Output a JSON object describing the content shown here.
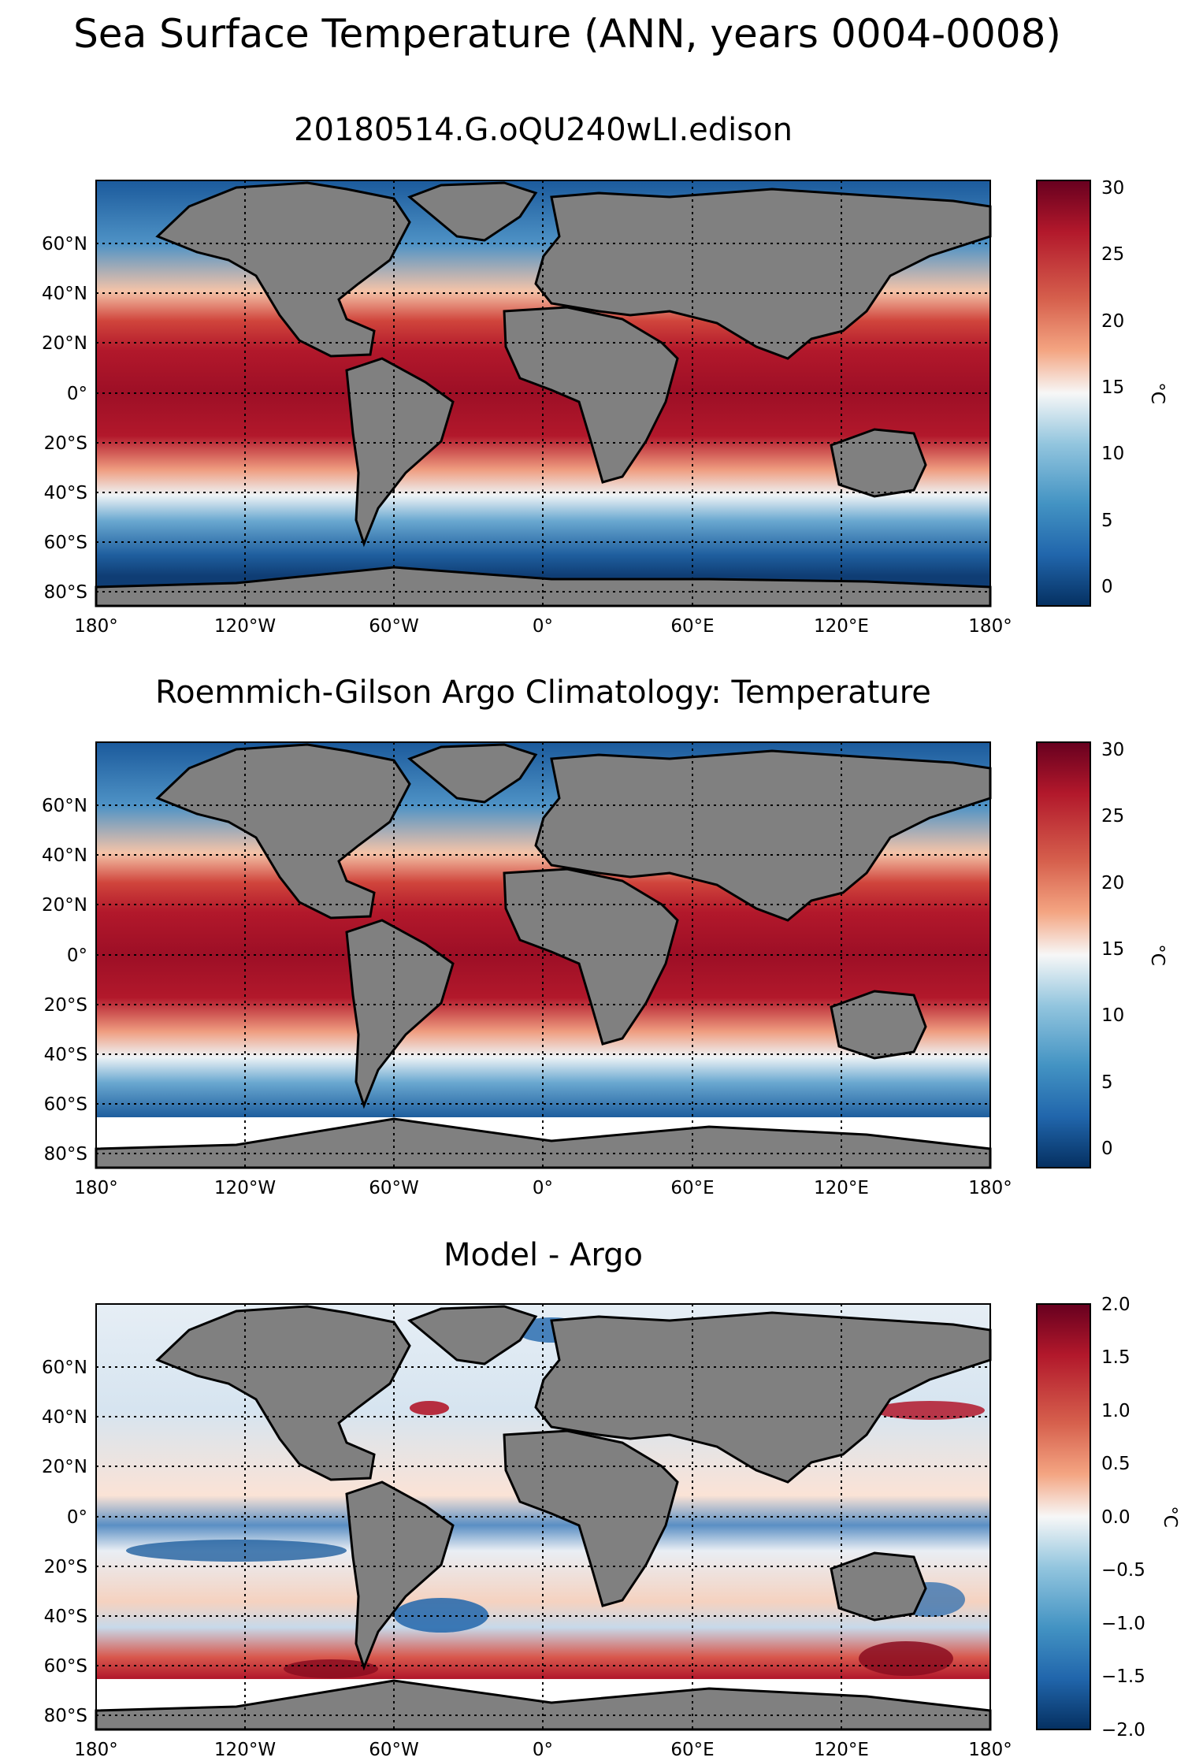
{
  "suptitle": "Sea Surface Temperature (ANN, years 0004-0008)",
  "panels": [
    {
      "title": "20180514.G.oQU240wLI.edison",
      "colorbar": {
        "ticks": [
          "30",
          "25",
          "20",
          "15",
          "10",
          "5",
          "0"
        ],
        "unit": "°C",
        "vmin": -2,
        "vmax": 30,
        "cmap": "RdBu_r"
      }
    },
    {
      "title": "Roemmich-Gilson Argo Climatology: Temperature",
      "colorbar": {
        "ticks": [
          "30",
          "25",
          "20",
          "15",
          "10",
          "5",
          "0"
        ],
        "unit": "°C",
        "vmin": -2,
        "vmax": 30,
        "cmap": "RdBu_r"
      }
    },
    {
      "title": "Model - Argo",
      "colorbar": {
        "ticks": [
          "2.0",
          "1.5",
          "1.0",
          "0.5",
          "0.0",
          "−0.5",
          "−1.0",
          "−1.5",
          "−2.0"
        ],
        "unit": "°C",
        "vmin": -2,
        "vmax": 2,
        "cmap": "RdBu_r"
      }
    }
  ],
  "axes": {
    "lon_labels": [
      "180°",
      "120°W",
      "60°W",
      "0°",
      "60°E",
      "120°E",
      "180°"
    ],
    "lat_labels": [
      "60°N",
      "40°N",
      "20°N",
      "0°",
      "20°S",
      "40°S",
      "60°S",
      "80°S"
    ]
  },
  "colors": {
    "land": "#808080",
    "warm": "#b2182b",
    "cool": "#2166ac",
    "neutral": "#f7f7f7"
  }
}
